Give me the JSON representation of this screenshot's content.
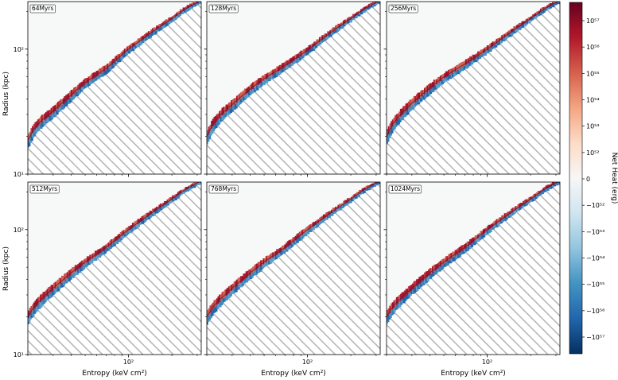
{
  "chart_data": {
    "type": "heatmap",
    "x_scale": "log",
    "y_scale": "log",
    "xlim": [
      20,
      320
    ],
    "ylim": [
      10,
      240
    ],
    "xlabel": "Entropy (keV cm²)",
    "ylabel": "Radius (kpc)",
    "x_ticks": [
      {
        "value": 100,
        "label": "10²"
      }
    ],
    "y_ticks": [
      {
        "value": 10,
        "label": "10¹"
      },
      {
        "value": 100,
        "label": "10²"
      }
    ],
    "panels": [
      {
        "label": "64Myrs",
        "profile": [
          [
            20,
            18.5
          ],
          [
            22,
            23
          ],
          [
            25,
            27
          ],
          [
            30,
            32
          ],
          [
            40,
            43
          ],
          [
            50,
            54
          ],
          [
            70,
            70
          ],
          [
            100,
            100
          ],
          [
            150,
            140
          ],
          [
            200,
            175
          ],
          [
            250,
            210
          ],
          [
            320,
            245
          ]
        ],
        "dominant": "red",
        "secondary": "blue"
      },
      {
        "label": "128Myrs",
        "profile": [
          [
            20,
            20
          ],
          [
            22,
            25
          ],
          [
            25,
            30
          ],
          [
            30,
            36
          ],
          [
            40,
            48
          ],
          [
            50,
            58
          ],
          [
            70,
            74
          ],
          [
            100,
            98
          ],
          [
            150,
            140
          ],
          [
            200,
            175
          ],
          [
            250,
            210
          ],
          [
            320,
            245
          ]
        ],
        "dominant": "red",
        "secondary": "blue"
      },
      {
        "label": "256Myrs",
        "profile": [
          [
            20,
            20
          ],
          [
            22,
            25
          ],
          [
            25,
            30
          ],
          [
            30,
            37
          ],
          [
            40,
            49
          ],
          [
            50,
            60
          ],
          [
            70,
            76
          ],
          [
            100,
            100
          ],
          [
            150,
            140
          ],
          [
            200,
            175
          ],
          [
            250,
            210
          ],
          [
            320,
            245
          ]
        ],
        "dominant": "red",
        "secondary": "blue"
      },
      {
        "label": "512Myrs",
        "profile": [
          [
            20,
            20
          ],
          [
            22,
            24
          ],
          [
            25,
            28
          ],
          [
            30,
            34
          ],
          [
            40,
            45
          ],
          [
            50,
            55
          ],
          [
            70,
            72
          ],
          [
            100,
            100
          ],
          [
            150,
            140
          ],
          [
            200,
            175
          ],
          [
            250,
            210
          ],
          [
            320,
            245
          ]
        ],
        "dominant": "red",
        "secondary": "blue"
      },
      {
        "label": "768Myrs",
        "profile": [
          [
            20,
            20
          ],
          [
            22,
            24
          ],
          [
            25,
            28
          ],
          [
            30,
            34
          ],
          [
            40,
            45
          ],
          [
            50,
            55
          ],
          [
            70,
            72
          ],
          [
            100,
            100
          ],
          [
            150,
            140
          ],
          [
            200,
            175
          ],
          [
            250,
            210
          ],
          [
            320,
            245
          ]
        ],
        "dominant": "red",
        "secondary": "blue"
      },
      {
        "label": "1024Myrs",
        "profile": [
          [
            20,
            20
          ],
          [
            22,
            24
          ],
          [
            25,
            28
          ],
          [
            30,
            34
          ],
          [
            40,
            45
          ],
          [
            50,
            55
          ],
          [
            70,
            72
          ],
          [
            100,
            100
          ],
          [
            150,
            140
          ],
          [
            200,
            175
          ],
          [
            250,
            210
          ],
          [
            320,
            245
          ]
        ],
        "dominant": "red",
        "secondary": "blue"
      }
    ],
    "colorbar": {
      "label": "Net Heat (erg)",
      "ticks": [
        "10⁵⁷",
        "10⁵⁶",
        "10⁵⁵",
        "10⁵⁴",
        "10⁵³",
        "10⁵²",
        "0",
        "−10⁵²",
        "−10⁵³",
        "−10⁵⁴",
        "−10⁵⁵",
        "−10⁵⁶",
        "−10⁵⁷"
      ],
      "colormap": "RdBu_r",
      "colors": [
        "#67001f",
        "#b2182b",
        "#d6604d",
        "#f4a582",
        "#fddbc7",
        "#f7f7f7",
        "#d1e5f0",
        "#92c5de",
        "#4393c3",
        "#2166ac",
        "#053061"
      ]
    },
    "hatch_region": "below profile (masked)"
  }
}
